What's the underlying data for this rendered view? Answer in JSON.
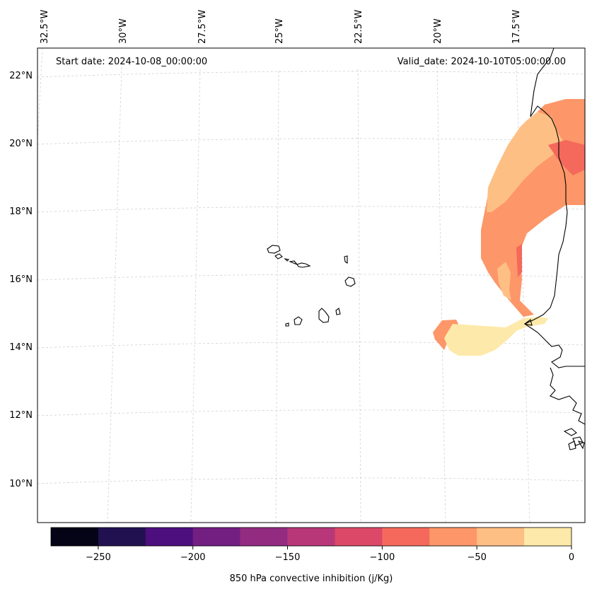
{
  "map": {
    "start_label": "Start date: 2024-10-08_00:00:00",
    "valid_label": "Valid_date: 2024-10-10T05:00:00.00",
    "lon_labels": [
      "32.5°W",
      "30°W",
      "27.5°W",
      "25°W",
      "22.5°W",
      "20°W",
      "17.5°W"
    ],
    "lat_labels": [
      "22°N",
      "20°N",
      "18°N",
      "16°N",
      "14°N",
      "12°N",
      "10°N"
    ]
  },
  "colorbar": {
    "label": "850 hPa convective inhibition (j/Kg)",
    "ticks": [
      "−250",
      "−200",
      "−150",
      "−100",
      "−50",
      "0"
    ],
    "levels": [
      -275,
      -250,
      -225,
      -200,
      -175,
      -150,
      -125,
      -100,
      -75,
      -50,
      -25,
      0
    ],
    "colors": [
      "#050416",
      "#221150",
      "#4e0f7e",
      "#721f81",
      "#932b80",
      "#b73779",
      "#dc4867",
      "#f4695c",
      "#fd9668",
      "#febf84",
      "#fde9a9"
    ]
  }
}
